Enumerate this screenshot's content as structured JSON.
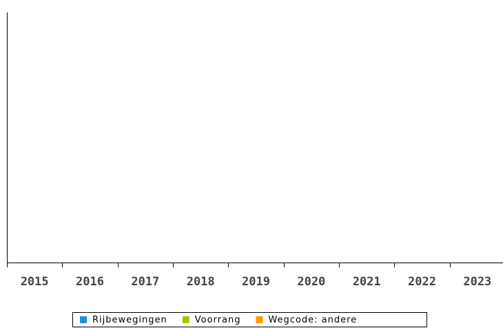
{
  "chart_data": {
    "type": "bar",
    "categories": [
      "2015",
      "2016",
      "2017",
      "2018",
      "2019",
      "2020",
      "2021",
      "2022",
      "2023"
    ],
    "series": [
      {
        "name": "Rijbewegingen",
        "color": "#1e90d8",
        "values": [
          null,
          null,
          null,
          null,
          null,
          null,
          null,
          null,
          null
        ]
      },
      {
        "name": "Voorrang",
        "color": "#99cc00",
        "values": [
          null,
          null,
          null,
          null,
          null,
          null,
          null,
          null,
          null
        ]
      },
      {
        "name": "Wegcode: andere",
        "color": "#ff9900",
        "values": [
          null,
          null,
          null,
          null,
          null,
          null,
          null,
          null,
          null
        ]
      }
    ]
  }
}
